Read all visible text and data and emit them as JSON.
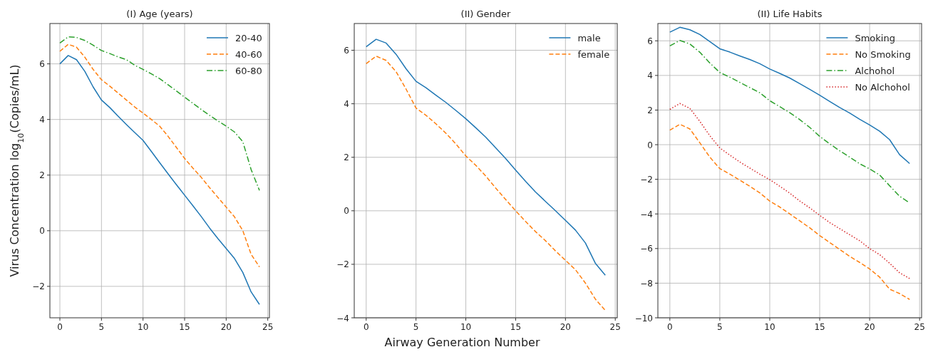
{
  "chart_data": [
    {
      "type": "line",
      "title": "(I)  Age (years)",
      "ylabel": "Virus Concentration log$_{10}$(Copies/mL)",
      "x": [
        0,
        1,
        2,
        3,
        4,
        5,
        6,
        7,
        8,
        9,
        10,
        11,
        12,
        13,
        14,
        15,
        16,
        17,
        18,
        19,
        20,
        21,
        22,
        23,
        24
      ],
      "xlim": [
        -1.2,
        25.2
      ],
      "xticks": [
        0,
        5,
        10,
        15,
        20,
        25
      ],
      "ylim": [
        -3.13,
        7.45
      ],
      "yticks": [
        -2,
        0,
        2,
        4,
        6
      ],
      "grid": true,
      "legend": "top right",
      "series": [
        {
          "name": "20-40",
          "color": "#1f77b4",
          "line_style": "solid",
          "values": [
            6.0,
            6.3,
            6.15,
            5.73,
            5.17,
            4.7,
            4.43,
            4.12,
            3.82,
            3.53,
            3.25,
            2.85,
            2.45,
            2.05,
            1.66,
            1.28,
            0.9,
            0.51,
            0.1,
            -0.28,
            -0.64,
            -1.0,
            -1.5,
            -2.2,
            -2.65
          ]
        },
        {
          "name": "40-60",
          "color": "#ff7f0e",
          "line_style": "dashed",
          "values": [
            6.45,
            6.7,
            6.6,
            6.24,
            5.8,
            5.43,
            5.2,
            4.95,
            4.7,
            4.45,
            4.23,
            4.0,
            3.76,
            3.4,
            3.0,
            2.6,
            2.25,
            1.92,
            1.55,
            1.2,
            0.85,
            0.5,
            0.0,
            -0.85,
            -1.3
          ]
        },
        {
          "name": "60-80",
          "color": "#2ca02c",
          "line_style": "dashdot",
          "values": [
            6.75,
            6.97,
            6.95,
            6.84,
            6.67,
            6.48,
            6.37,
            6.25,
            6.15,
            5.95,
            5.8,
            5.64,
            5.47,
            5.25,
            5.03,
            4.8,
            4.58,
            4.36,
            4.15,
            3.95,
            3.76,
            3.55,
            3.2,
            2.2,
            1.45
          ]
        }
      ]
    },
    {
      "type": "line",
      "title": "(II)  Gender",
      "xlabel": "Airway Generation Number",
      "x": [
        0,
        1,
        2,
        3,
        4,
        5,
        6,
        7,
        8,
        9,
        10,
        11,
        12,
        13,
        14,
        15,
        16,
        17,
        18,
        19,
        20,
        21,
        22,
        23,
        24
      ],
      "xlim": [
        -1.2,
        25.2
      ],
      "xticks": [
        0,
        5,
        10,
        15,
        20,
        25
      ],
      "ylim": [
        -4,
        7
      ],
      "yticks": [
        -4,
        -2,
        0,
        2,
        4,
        6
      ],
      "grid": true,
      "legend": "top right",
      "series": [
        {
          "name": "male",
          "color": "#1f77b4",
          "line_style": "solid",
          "values": [
            6.13,
            6.41,
            6.27,
            5.85,
            5.31,
            4.84,
            4.6,
            4.32,
            4.05,
            3.75,
            3.44,
            3.1,
            2.75,
            2.35,
            1.95,
            1.52,
            1.1,
            0.7,
            0.35,
            0.0,
            -0.36,
            -0.72,
            -1.2,
            -1.96,
            -2.41
          ]
        },
        {
          "name": "female",
          "color": "#ff7f0e",
          "line_style": "dashed",
          "values": [
            5.5,
            5.78,
            5.62,
            5.2,
            4.55,
            3.84,
            3.57,
            3.25,
            2.9,
            2.5,
            2.05,
            1.7,
            1.3,
            0.85,
            0.42,
            0.0,
            -0.4,
            -0.78,
            -1.12,
            -1.5,
            -1.85,
            -2.2,
            -2.7,
            -3.3,
            -3.72
          ]
        }
      ]
    },
    {
      "type": "line",
      "title": "(II)  Life Habits",
      "x": [
        0,
        1,
        2,
        3,
        4,
        5,
        6,
        7,
        8,
        9,
        10,
        11,
        12,
        13,
        14,
        15,
        16,
        17,
        18,
        19,
        20,
        21,
        22,
        23,
        24
      ],
      "xlim": [
        -1.2,
        25.2
      ],
      "xticks": [
        0,
        5,
        10,
        15,
        20,
        25
      ],
      "ylim": [
        -10,
        7
      ],
      "yticks": [
        -10,
        -8,
        -6,
        -4,
        -2,
        0,
        2,
        4,
        6
      ],
      "grid": true,
      "legend": "top right",
      "series": [
        {
          "name": "Smoking",
          "color": "#1f77b4",
          "line_style": "solid",
          "values": [
            6.5,
            6.78,
            6.64,
            6.37,
            5.96,
            5.54,
            5.35,
            5.13,
            4.92,
            4.68,
            4.37,
            4.12,
            3.85,
            3.53,
            3.2,
            2.86,
            2.5,
            2.15,
            1.83,
            1.47,
            1.14,
            0.78,
            0.29,
            -0.58,
            -1.09
          ]
        },
        {
          "name": "No Smoking",
          "color": "#ff7f0e",
          "line_style": "dashed",
          "values": [
            0.84,
            1.18,
            0.91,
            0.11,
            -0.72,
            -1.38,
            -1.7,
            -2.05,
            -2.4,
            -2.78,
            -3.26,
            -3.6,
            -4.0,
            -4.4,
            -4.8,
            -5.25,
            -5.65,
            -6.05,
            -6.45,
            -6.8,
            -7.18,
            -7.65,
            -8.35,
            -8.6,
            -8.94
          ]
        },
        {
          "name": "Alchohol",
          "color": "#2ca02c",
          "line_style": "dashdot",
          "values": [
            5.71,
            6.02,
            5.82,
            5.34,
            4.72,
            4.17,
            3.9,
            3.6,
            3.3,
            3.0,
            2.54,
            2.2,
            1.85,
            1.45,
            1.0,
            0.48,
            0.05,
            -0.35,
            -0.72,
            -1.1,
            -1.4,
            -1.75,
            -2.37,
            -2.98,
            -3.36
          ]
        },
        {
          "name": "No Alchohol",
          "color": "#d62728",
          "line_style": "dotted",
          "values": [
            2.04,
            2.38,
            2.1,
            1.35,
            0.52,
            -0.19,
            -0.6,
            -1.0,
            -1.35,
            -1.7,
            -2.02,
            -2.4,
            -2.8,
            -3.25,
            -3.65,
            -4.08,
            -4.5,
            -4.85,
            -5.2,
            -5.55,
            -6.0,
            -6.35,
            -6.85,
            -7.4,
            -7.73
          ]
        }
      ]
    }
  ]
}
